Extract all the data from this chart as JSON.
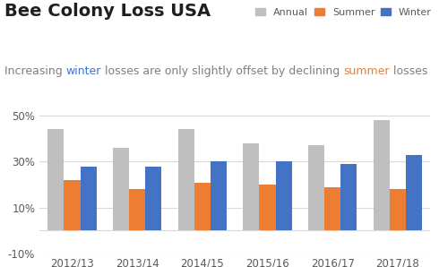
{
  "title": "Bee Colony Loss USA",
  "subtitle_parts": [
    {
      "text": "Increasing ",
      "color": "#7F7F7F"
    },
    {
      "text": "winter",
      "color": "#4472C4"
    },
    {
      "text": " losses are only slightly offset by declining ",
      "color": "#7F7F7F"
    },
    {
      "text": "summer",
      "color": "#ED7D31"
    },
    {
      "text": " losses",
      "color": "#7F7F7F"
    }
  ],
  "categories": [
    "2012/13",
    "2013/14",
    "2014/15",
    "2015/16",
    "2016/17",
    "2017/18"
  ],
  "annual": [
    0.44,
    0.36,
    0.44,
    0.38,
    0.37,
    0.48
  ],
  "summer": [
    0.22,
    0.18,
    0.21,
    0.2,
    0.19,
    0.18
  ],
  "winter": [
    0.28,
    0.28,
    0.3,
    0.3,
    0.29,
    0.33
  ],
  "annual_color": "#BFBFBF",
  "summer_color": "#ED7D31",
  "winter_color": "#4472C4",
  "ylim": [
    -0.1,
    0.55
  ],
  "yticks": [
    -0.1,
    0.1,
    0.3,
    0.5
  ],
  "ytick_labels": [
    "-10%",
    "10%",
    "30%",
    "50%"
  ],
  "background_color": "#FFFFFF",
  "legend_labels": [
    "Annual",
    "Summer",
    "Winter"
  ],
  "bar_width": 0.25,
  "title_fontsize": 14,
  "subtitle_fontsize": 9,
  "axis_fontsize": 8.5
}
